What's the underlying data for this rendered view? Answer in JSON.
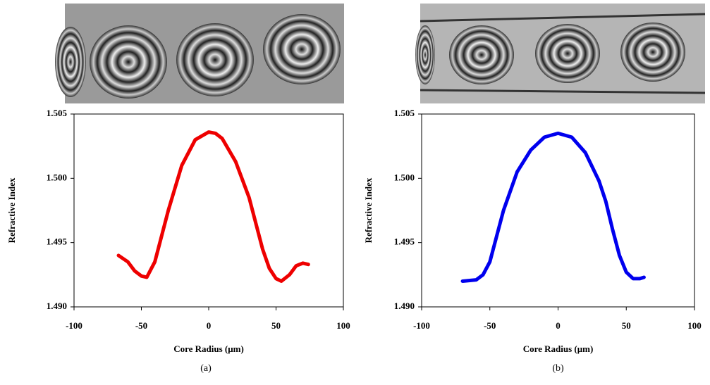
{
  "chart_data": [
    {
      "type": "line",
      "panel_label": "(a)",
      "xlabel": "Core Radius (μm)",
      "ylabel": "Refractive Index",
      "x": [
        -67,
        -60,
        -55,
        -50,
        -46,
        -40,
        -30,
        -20,
        -10,
        0,
        5,
        10,
        20,
        30,
        40,
        45,
        50,
        54,
        60,
        65,
        70,
        74
      ],
      "values": [
        1.494,
        1.4935,
        1.4928,
        1.4924,
        1.4923,
        1.4935,
        1.4975,
        1.501,
        1.503,
        1.5036,
        1.5035,
        1.5031,
        1.5013,
        1.4985,
        1.4945,
        1.493,
        1.4922,
        1.492,
        1.4925,
        1.4932,
        1.4934,
        1.4933
      ],
      "color": "#ee0000",
      "xlim": [
        -100,
        100
      ],
      "xticks": [
        -100,
        -50,
        0,
        50,
        100
      ],
      "ylim": [
        1.49,
        1.505
      ],
      "yticks": [
        {
          "value": 1.49,
          "label": "1.490"
        },
        1.495,
        {
          "value": 1.5,
          "label": "1.500"
        },
        1.505
      ]
    },
    {
      "type": "line",
      "panel_label": "(b)",
      "xlabel": "Core Radius (μm)",
      "ylabel": "Refractive Index",
      "x": [
        -70,
        -60,
        -55,
        -50,
        -45,
        -40,
        -30,
        -20,
        -10,
        0,
        10,
        20,
        30,
        35,
        40,
        45,
        50,
        55,
        60,
        63
      ],
      "values": [
        1.492,
        1.4921,
        1.4925,
        1.4935,
        1.4955,
        1.4975,
        1.5005,
        1.5022,
        1.5032,
        1.5035,
        1.5032,
        1.502,
        1.4998,
        1.4982,
        1.496,
        1.494,
        1.4927,
        1.4922,
        1.4922,
        1.4923
      ],
      "color": "#0000ee",
      "xlim": [
        -100,
        100
      ],
      "xticks": [
        -100,
        -50,
        0,
        50,
        100
      ],
      "ylim": [
        1.49,
        1.505
      ],
      "yticks": [
        {
          "value": 1.49,
          "label": "1.490"
        },
        1.495,
        {
          "value": 1.5,
          "label": "1.500"
        },
        1.505
      ]
    }
  ]
}
